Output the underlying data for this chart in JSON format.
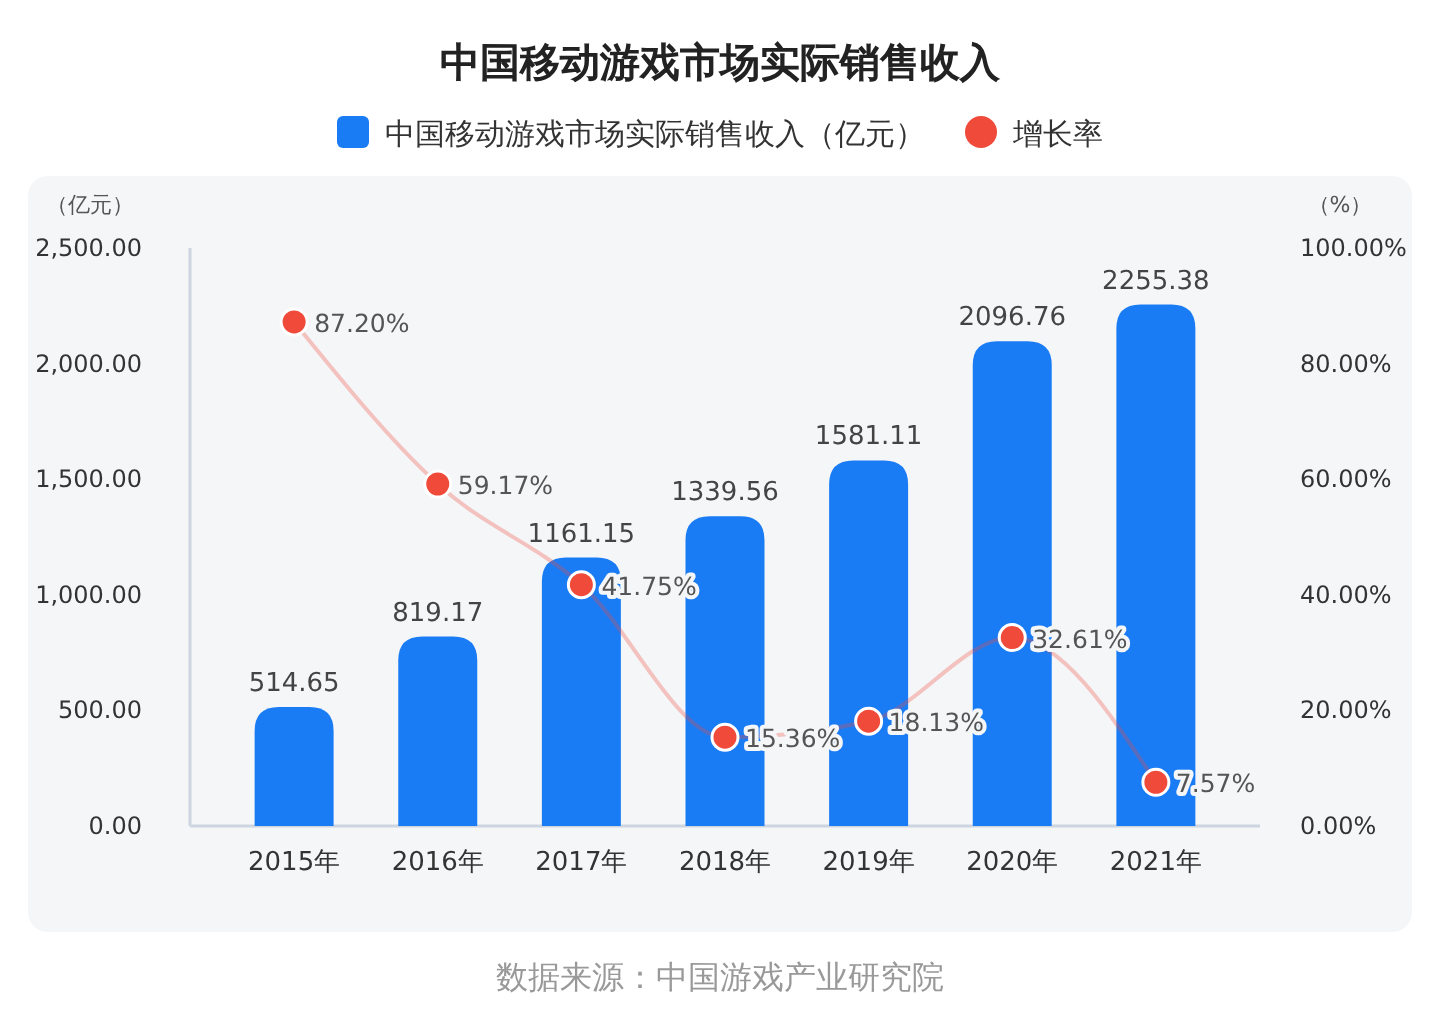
{
  "chart_data": {
    "type": "bar",
    "title": "中国移动游戏市场实际销售收入",
    "categories": [
      "2015年",
      "2016年",
      "2017年",
      "2018年",
      "2019年",
      "2020年",
      "2021年"
    ],
    "series": [
      {
        "name": "中国移动游戏市场实际销售收入（亿元）",
        "color": "#1a7cf5",
        "values": [
          514.65,
          819.17,
          1161.15,
          1339.56,
          1581.11,
          2096.76,
          2255.38
        ]
      },
      {
        "name": "增长率",
        "type": "line",
        "axis": "y2",
        "color": "#f04a3a",
        "marker": "circle",
        "values": [
          87.2,
          59.17,
          41.75,
          15.36,
          18.13,
          32.61,
          7.57
        ],
        "value_labels": [
          "87.20%",
          "59.17%",
          "41.75%",
          "15.36%",
          "18.13%",
          "32.61%",
          "7.57%"
        ]
      }
    ],
    "data_labels": true,
    "ylabel": "（亿元）",
    "y2label": "（%）",
    "ylim": [
      0,
      2500
    ],
    "yticks": [
      {
        "value": 0,
        "label": "0.00"
      },
      {
        "value": 500,
        "label": "500.00"
      },
      {
        "value": 1000,
        "label": "1,000.00"
      },
      {
        "value": 1500,
        "label": "1,500.00"
      },
      {
        "value": 2000,
        "label": "2,000.00"
      },
      {
        "value": 2500,
        "label": "2,500.00"
      }
    ],
    "y2lim": [
      0,
      100
    ],
    "y2ticks": [
      {
        "value": 0,
        "label": "0.00%"
      },
      {
        "value": 20,
        "label": "20.00%"
      },
      {
        "value": 40,
        "label": "40.00%"
      },
      {
        "value": 60,
        "label": "60.00%"
      },
      {
        "value": 80,
        "label": "80.00%"
      },
      {
        "value": 100,
        "label": "100.00%"
      }
    ],
    "legend": "top",
    "grid": false,
    "annotations": [
      "数据来源：中国游戏产业研究院"
    ]
  }
}
